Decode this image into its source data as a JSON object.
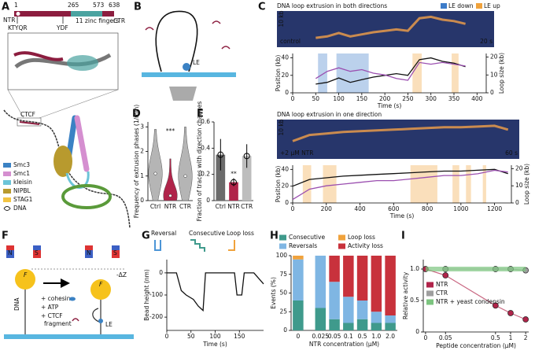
{
  "panels": [
    "A",
    "B",
    "C",
    "D",
    "E",
    "F",
    "G",
    "H",
    "I"
  ],
  "figure_a": {
    "residues": [
      "1",
      "265",
      "573",
      "638"
    ],
    "ntr": "NTR",
    "ntr_motif": "KTYQR",
    "ydf": "YDF",
    "zinc": "11 zinc fingers",
    "ctr": "CTR",
    "ctcf": "CTCF",
    "legend": [
      {
        "name": "Smc3",
        "color": "#3b82c4"
      },
      {
        "name": "Smc1",
        "color": "#d58fd0"
      },
      {
        "name": "kleisin",
        "color": "#6cc4d8"
      },
      {
        "name": "NIPBL",
        "color": "#b89a2e"
      },
      {
        "name": "STAG1",
        "color": "#f2c443"
      },
      {
        "name": "DNA",
        "color": "#222222"
      }
    ]
  },
  "figure_b": {
    "le": "LE"
  },
  "figure_f": {
    "north": "N",
    "south": "S",
    "force": "F",
    "dz": "-ΔZ",
    "dna": "DNA",
    "cohesin": "+ cohesin",
    "atp": "+ ATP",
    "ctcf": "+ CTCF",
    "fragment": "fragment",
    "le": "LE"
  },
  "chart_data": [
    {
      "type": "line",
      "title": "DNA loop extrusion in both directions",
      "legend": [
        "LE down",
        "LE up"
      ],
      "colors": [
        "#3d7cc9",
        "#f0a23c"
      ],
      "kymo": {
        "time_scale": "20 s",
        "size_scale": "10 kb",
        "condition": "control"
      },
      "xlabel": "Time (s)",
      "ylabel": "Position (kb)",
      "y2label": "Loop size (kb)",
      "x": [
        50,
        75,
        100,
        125,
        150,
        175,
        200,
        225,
        250,
        275,
        300,
        325,
        350,
        375
      ],
      "series": [
        {
          "name": "Position",
          "color": "#111111",
          "values": [
            10,
            12,
            17,
            12,
            15,
            18,
            20,
            22,
            20,
            38,
            40,
            36,
            34,
            30
          ]
        },
        {
          "name": "Loop size",
          "color": "#9b4fb0",
          "axis": "y2",
          "values": [
            8,
            12,
            14,
            12,
            13,
            11,
            10,
            8,
            7,
            17,
            16,
            17,
            16,
            15
          ]
        }
      ],
      "phases": [
        [
          [
            55,
            75
          ],
          [
            95,
            165
          ]
        ],
        [
          [
            260,
            280
          ],
          [
            345,
            360
          ]
        ]
      ],
      "xlim": [
        0,
        420
      ],
      "xticks": [
        0,
        50,
        100,
        150,
        200,
        250,
        300,
        350,
        400
      ],
      "ylim": [
        0,
        45
      ],
      "yticks": [
        0,
        20,
        40
      ],
      "y2lim": [
        0,
        22
      ],
      "y2ticks": [
        0,
        10,
        20
      ]
    },
    {
      "type": "line",
      "title": "DNA loop extrusion in one direction",
      "colors": [
        "#3d7cc9",
        "#f0a23c"
      ],
      "kymo": {
        "time_scale": "60 s",
        "size_scale": "10 kb",
        "condition": "+2 µM NTR"
      },
      "xlabel": "Time (s)",
      "ylabel": "Position (kb)",
      "y2label": "Loop size (kb)",
      "x": [
        0,
        100,
        200,
        300,
        400,
        500,
        600,
        700,
        800,
        900,
        1000,
        1100,
        1200,
        1280
      ],
      "series": [
        {
          "name": "Position",
          "color": "#111111",
          "values": [
            20,
            28,
            30,
            32,
            33,
            34,
            35,
            36,
            37,
            38,
            38,
            39,
            40,
            35
          ]
        },
        {
          "name": "Loop size",
          "color": "#9b4fb0",
          "axis": "y2",
          "values": [
            2,
            8,
            10,
            11,
            12,
            13,
            13,
            14,
            15,
            16,
            16,
            17,
            19,
            18
          ]
        }
      ],
      "phases": [
        [],
        [
          [
            60,
            110
          ],
          [
            180,
            260
          ],
          [
            700,
            860
          ],
          [
            950,
            990
          ],
          [
            1030,
            1060
          ],
          [
            1130,
            1150
          ]
        ]
      ],
      "xlim": [
        0,
        1300
      ],
      "xticks": [
        0,
        200,
        400,
        600,
        800,
        1000,
        1200
      ],
      "ylim": [
        0,
        45
      ],
      "yticks": [
        0,
        20,
        40
      ],
      "y2lim": [
        0,
        22
      ],
      "y2ticks": [
        0,
        10,
        20
      ]
    },
    {
      "type": "violin",
      "ylabel": "Frequency of extrusion phases (1/min)",
      "categories": [
        "Ctrl",
        "NTR",
        "CTR"
      ],
      "values": [
        1.1,
        0.2,
        1.0
      ],
      "ranges": [
        [
          0,
          2.9
        ],
        [
          0,
          1.7
        ],
        [
          0,
          3.0
        ]
      ],
      "colors": [
        "#b5b5b5",
        "#b0244a",
        "#b5b5b5"
      ],
      "ylim": [
        0,
        3.2
      ],
      "yticks": [
        0,
        1,
        2,
        3
      ],
      "annotation": "***"
    },
    {
      "type": "bar",
      "ylabel": "Fraction of traces with direction changes",
      "categories": [
        "Ctrl",
        "NTR",
        "CTR"
      ],
      "values": [
        0.35,
        0.14,
        0.34
      ],
      "errors": [
        0.12,
        0.03,
        0.09
      ],
      "colors": [
        "#6b6b6b",
        "#b0244a",
        "#bdbdbd"
      ],
      "ylim": [
        0,
        0.6
      ],
      "yticks": [
        0,
        0.2,
        0.4,
        0.6
      ],
      "annotation": "**"
    },
    {
      "type": "line",
      "xlabel": "Time (s)",
      "ylabel": "Bead height (nm)",
      "event_labels": [
        "Reversal",
        "Consecutive",
        "Loop loss"
      ],
      "event_colors": [
        "#4c95d6",
        "#3f9a8c",
        "#f0a23c"
      ],
      "x": [
        0,
        20,
        30,
        40,
        55,
        65,
        75,
        80,
        100,
        140,
        145,
        155,
        160,
        180,
        200
      ],
      "values": [
        0,
        0,
        -80,
        -100,
        -120,
        -150,
        -170,
        0,
        0,
        0,
        -100,
        -100,
        0,
        0,
        -50
      ],
      "xlim": [
        0,
        200
      ],
      "xticks": [
        0,
        50,
        100,
        150
      ],
      "ylim": [
        -260,
        60
      ],
      "yticks": [
        -200,
        -100,
        0
      ]
    },
    {
      "type": "stacked-bar",
      "xlabel": "NTR concentration (µM)",
      "ylabel": "Events (%)",
      "categories": [
        "0",
        "0.025",
        "0.05",
        "0.1",
        "0.5",
        "1.0",
        "2.0"
      ],
      "series": [
        {
          "name": "Consecutive",
          "color": "#3f9a8c",
          "values": [
            40,
            30,
            15,
            10,
            15,
            10,
            10
          ]
        },
        {
          "name": "Reversals",
          "color": "#7fb6e3",
          "values": [
            55,
            70,
            50,
            35,
            25,
            15,
            10
          ]
        },
        {
          "name": "Loop loss",
          "color": "#f0a23c",
          "values": [
            5,
            0,
            0,
            0,
            0,
            0,
            0
          ]
        },
        {
          "name": "Activity loss",
          "color": "#c8323c",
          "values": [
            0,
            0,
            35,
            55,
            60,
            75,
            80
          ]
        }
      ],
      "ylim": [
        0,
        100
      ],
      "yticks": [
        0,
        25,
        50,
        75,
        100
      ]
    },
    {
      "type": "scatter",
      "xlabel": "Peptide concentration (µM)",
      "ylabel": "Relative activity",
      "log_x": true,
      "series": [
        {
          "name": "NTR",
          "color": "#b0244a",
          "x": [
            0.02,
            0.05,
            0.5,
            1,
            2
          ],
          "values": [
            1.0,
            0.9,
            0.42,
            0.3,
            0.2
          ]
        },
        {
          "name": "CTR",
          "color": "#9e9e9e",
          "x": [
            0.05,
            0.5,
            1,
            2
          ],
          "values": [
            1,
            1,
            1,
            0.98
          ]
        },
        {
          "name": "NTR + yeast condensin",
          "color": "#7cc47f",
          "x": [
            0.02,
            2
          ],
          "values": [
            1,
            1
          ]
        }
      ],
      "xlim": [
        0.018,
        2.3
      ],
      "xticks": [
        {
          "value": 0.02,
          "label": "0"
        },
        0.05,
        0.5,
        1,
        2
      ],
      "ylim": [
        0,
        1.15
      ],
      "yticks": [
        0,
        0.5,
        {
          "value": 1,
          "label": "1.0"
        }
      ]
    }
  ]
}
